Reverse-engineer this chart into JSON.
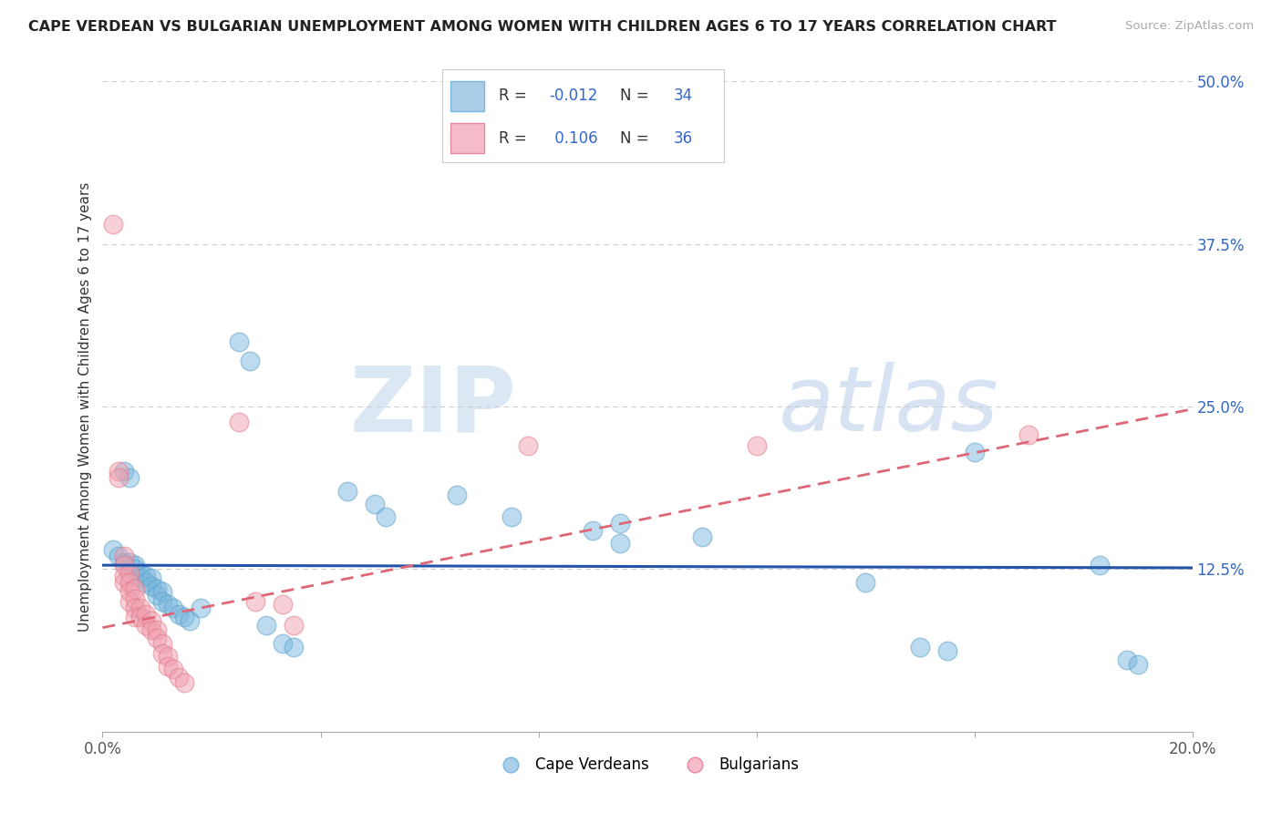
{
  "title": "CAPE VERDEAN VS BULGARIAN UNEMPLOYMENT AMONG WOMEN WITH CHILDREN AGES 6 TO 17 YEARS CORRELATION CHART",
  "source": "Source: ZipAtlas.com",
  "ylabel": "Unemployment Among Women with Children Ages 6 to 17 years",
  "xlim": [
    0.0,
    0.2
  ],
  "ylim": [
    0.0,
    0.5
  ],
  "xticks": [
    0.0,
    0.04,
    0.08,
    0.12,
    0.16,
    0.2
  ],
  "xticklabels": [
    "0.0%",
    "",
    "",
    "",
    "",
    "20.0%"
  ],
  "yticks_right": [
    0.0,
    0.125,
    0.25,
    0.375,
    0.5
  ],
  "ytick_right_labels": [
    "",
    "12.5%",
    "25.0%",
    "37.5%",
    "50.0%"
  ],
  "cv_color": "#7ab8de",
  "cv_edge_color": "#5a9ec8",
  "bg_color": "#f0a0b0",
  "bg_edge_color": "#e07888",
  "cv_line_color": "#2255aa",
  "bg_line_color": "#dd6677",
  "watermark_zip": "ZIP",
  "watermark_atlas": "atlas",
  "cv_line_y0": 0.128,
  "cv_line_y1": 0.126,
  "bg_line_y0": 0.08,
  "bg_line_y1": 0.248,
  "cv_points": [
    [
      0.002,
      0.14
    ],
    [
      0.003,
      0.135
    ],
    [
      0.004,
      0.13
    ],
    [
      0.004,
      0.2
    ],
    [
      0.005,
      0.195
    ],
    [
      0.005,
      0.13
    ],
    [
      0.006,
      0.128
    ],
    [
      0.006,
      0.125
    ],
    [
      0.007,
      0.122
    ],
    [
      0.007,
      0.118
    ],
    [
      0.008,
      0.12
    ],
    [
      0.008,
      0.115
    ],
    [
      0.009,
      0.118
    ],
    [
      0.009,
      0.112
    ],
    [
      0.01,
      0.11
    ],
    [
      0.01,
      0.105
    ],
    [
      0.011,
      0.108
    ],
    [
      0.011,
      0.1
    ],
    [
      0.012,
      0.098
    ],
    [
      0.013,
      0.095
    ],
    [
      0.014,
      0.09
    ],
    [
      0.015,
      0.088
    ],
    [
      0.016,
      0.085
    ],
    [
      0.018,
      0.095
    ],
    [
      0.025,
      0.3
    ],
    [
      0.027,
      0.285
    ],
    [
      0.03,
      0.082
    ],
    [
      0.033,
      0.068
    ],
    [
      0.035,
      0.065
    ],
    [
      0.045,
      0.185
    ],
    [
      0.05,
      0.175
    ],
    [
      0.052,
      0.165
    ],
    [
      0.065,
      0.182
    ],
    [
      0.075,
      0.165
    ],
    [
      0.09,
      0.155
    ],
    [
      0.095,
      0.16
    ],
    [
      0.095,
      0.145
    ],
    [
      0.11,
      0.15
    ],
    [
      0.14,
      0.115
    ],
    [
      0.15,
      0.065
    ],
    [
      0.155,
      0.062
    ],
    [
      0.16,
      0.215
    ],
    [
      0.183,
      0.128
    ],
    [
      0.188,
      0.055
    ],
    [
      0.19,
      0.052
    ]
  ],
  "bg_points": [
    [
      0.002,
      0.39
    ],
    [
      0.003,
      0.2
    ],
    [
      0.003,
      0.195
    ],
    [
      0.004,
      0.135
    ],
    [
      0.004,
      0.128
    ],
    [
      0.004,
      0.12
    ],
    [
      0.004,
      0.115
    ],
    [
      0.005,
      0.122
    ],
    [
      0.005,
      0.115
    ],
    [
      0.005,
      0.108
    ],
    [
      0.005,
      0.1
    ],
    [
      0.006,
      0.11
    ],
    [
      0.006,
      0.102
    ],
    [
      0.006,
      0.095
    ],
    [
      0.006,
      0.088
    ],
    [
      0.007,
      0.095
    ],
    [
      0.007,
      0.088
    ],
    [
      0.008,
      0.09
    ],
    [
      0.008,
      0.082
    ],
    [
      0.009,
      0.085
    ],
    [
      0.009,
      0.078
    ],
    [
      0.01,
      0.078
    ],
    [
      0.01,
      0.072
    ],
    [
      0.011,
      0.068
    ],
    [
      0.011,
      0.06
    ],
    [
      0.012,
      0.058
    ],
    [
      0.012,
      0.05
    ],
    [
      0.013,
      0.048
    ],
    [
      0.014,
      0.042
    ],
    [
      0.015,
      0.038
    ],
    [
      0.025,
      0.238
    ],
    [
      0.028,
      0.1
    ],
    [
      0.033,
      0.098
    ],
    [
      0.035,
      0.082
    ],
    [
      0.078,
      0.22
    ],
    [
      0.12,
      0.22
    ],
    [
      0.17,
      0.228
    ]
  ]
}
